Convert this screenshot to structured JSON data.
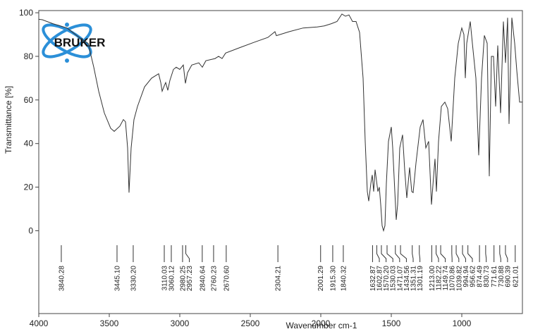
{
  "logo": "BRUKER",
  "chart_data": {
    "type": "line",
    "x_label": "Wavenumber cm-1",
    "y_label": "Transmittance [%]",
    "xlim": [
      4000,
      570
    ],
    "ylim": [
      -38,
      101
    ],
    "xticks": [
      4000,
      3500,
      3000,
      2500,
      2000,
      1500,
      1000
    ],
    "yticks": [
      0,
      20,
      40,
      60,
      80,
      100
    ],
    "x_inverted": true,
    "grid": false,
    "color": "#333333",
    "x": [
      4000,
      3975,
      3900,
      3800,
      3700,
      3650,
      3610,
      3575,
      3535,
      3490,
      3465,
      3425,
      3400,
      3385,
      3370,
      3360,
      3345,
      3325,
      3300,
      3250,
      3200,
      3150,
      3135,
      3125,
      3110,
      3100,
      3085,
      3070,
      3045,
      3025,
      3000,
      2975,
      2960,
      2945,
      2915,
      2865,
      2840,
      2815,
      2750,
      2725,
      2700,
      2675,
      2575,
      2475,
      2375,
      2325,
      2315,
      2225,
      2125,
      2025,
      1975,
      1925,
      1885,
      1850,
      1825,
      1800,
      1775,
      1750,
      1725,
      1700,
      1685,
      1670,
      1660,
      1645,
      1635,
      1625,
      1615,
      1605,
      1595,
      1585,
      1575,
      1565,
      1555,
      1545,
      1535,
      1520,
      1500,
      1490,
      1475,
      1465,
      1455,
      1440,
      1420,
      1405,
      1390,
      1370,
      1355,
      1345,
      1325,
      1295,
      1275,
      1255,
      1235,
      1215,
      1200,
      1190,
      1180,
      1165,
      1145,
      1120,
      1100,
      1075,
      1050,
      1025,
      1000,
      985,
      975,
      965,
      940,
      925,
      900,
      880,
      860,
      840,
      820,
      805,
      790,
      775,
      760,
      745,
      725,
      705,
      690,
      675,
      665,
      645,
      625,
      610,
      590,
      570
    ],
    "values": [
      97,
      96.8,
      95,
      93,
      88,
      86,
      75,
      64,
      54,
      47,
      45.6,
      48,
      51,
      50,
      38,
      17.5,
      38,
      51,
      57,
      66,
      70,
      72,
      68,
      64,
      66.5,
      68,
      64.4,
      69,
      74,
      75,
      74,
      76,
      67.6,
      72.5,
      76,
      77,
      75,
      78,
      79,
      80,
      79,
      81.5,
      84,
      86.4,
      88.7,
      91.3,
      89.5,
      91.3,
      93,
      93.5,
      94,
      95,
      96,
      99.4,
      98.4,
      99,
      96,
      96,
      91,
      70,
      41,
      18,
      13.6,
      21.7,
      25.6,
      18,
      28,
      23,
      18,
      20,
      12,
      2.3,
      0,
      2.3,
      21.7,
      41,
      47.6,
      38,
      18,
      5,
      12,
      38,
      44,
      28,
      15,
      29,
      18,
      17.5,
      31,
      47.6,
      51,
      38,
      41,
      12,
      25,
      33,
      18,
      41,
      57,
      59,
      56,
      41,
      70,
      86,
      93,
      90,
      70,
      86,
      96,
      86,
      70,
      34.6,
      70,
      89.6,
      86,
      25,
      80,
      80,
      57,
      85,
      54,
      96,
      77,
      97.7,
      49,
      97.7,
      86,
      73.5,
      59,
      59
    ],
    "peaks": [
      {
        "value": 3840.28,
        "label": "3840.28"
      },
      {
        "value": 3445.1,
        "label": "3445.10"
      },
      {
        "value": 3330.2,
        "label": "3330.20"
      },
      {
        "value": 3110.03,
        "label": "3110.03"
      },
      {
        "value": 3060.12,
        "label": "3060.12"
      },
      {
        "value": 2980.25,
        "label": "2980.25"
      },
      {
        "value": 2957.23,
        "label": "2957.23"
      },
      {
        "value": 2840.64,
        "label": "2840.64"
      },
      {
        "value": 2760.23,
        "label": "2760.23"
      },
      {
        "value": 2670.6,
        "label": "2670.60"
      },
      {
        "value": 2304.21,
        "label": "2304.21"
      },
      {
        "value": 2001.29,
        "label": "2001.29"
      },
      {
        "value": 1915.3,
        "label": "1915.30"
      },
      {
        "value": 1840.32,
        "label": "1840.32"
      },
      {
        "value": 1632.87,
        "label": "1632.87"
      },
      {
        "value": 1602.87,
        "label": "1602.87"
      },
      {
        "value": 1570.2,
        "label": "1570.20"
      },
      {
        "value": 1530.03,
        "label": "1530.03"
      },
      {
        "value": 1471.07,
        "label": "1471.07"
      },
      {
        "value": 1434.56,
        "label": "1434.56"
      },
      {
        "value": 1351.31,
        "label": "1351.31"
      },
      {
        "value": 1301.19,
        "label": "1301.19"
      },
      {
        "value": 1213.0,
        "label": "1213.00"
      },
      {
        "value": 1182.22,
        "label": "1182.22"
      },
      {
        "value": 1149.74,
        "label": "1149.74"
      },
      {
        "value": 1070.86,
        "label": "1070.86"
      },
      {
        "value": 1039.82,
        "label": "1039.82"
      },
      {
        "value": 994.94,
        "label": "994.94"
      },
      {
        "value": 956.62,
        "label": "956.62"
      },
      {
        "value": 874.49,
        "label": "874.49"
      },
      {
        "value": 830.73,
        "label": "830.73"
      },
      {
        "value": 771.61,
        "label": "771.61"
      },
      {
        "value": 730.88,
        "label": "730.88"
      },
      {
        "value": 690.39,
        "label": "690.39"
      },
      {
        "value": 621.01,
        "label": "621.01"
      }
    ]
  }
}
